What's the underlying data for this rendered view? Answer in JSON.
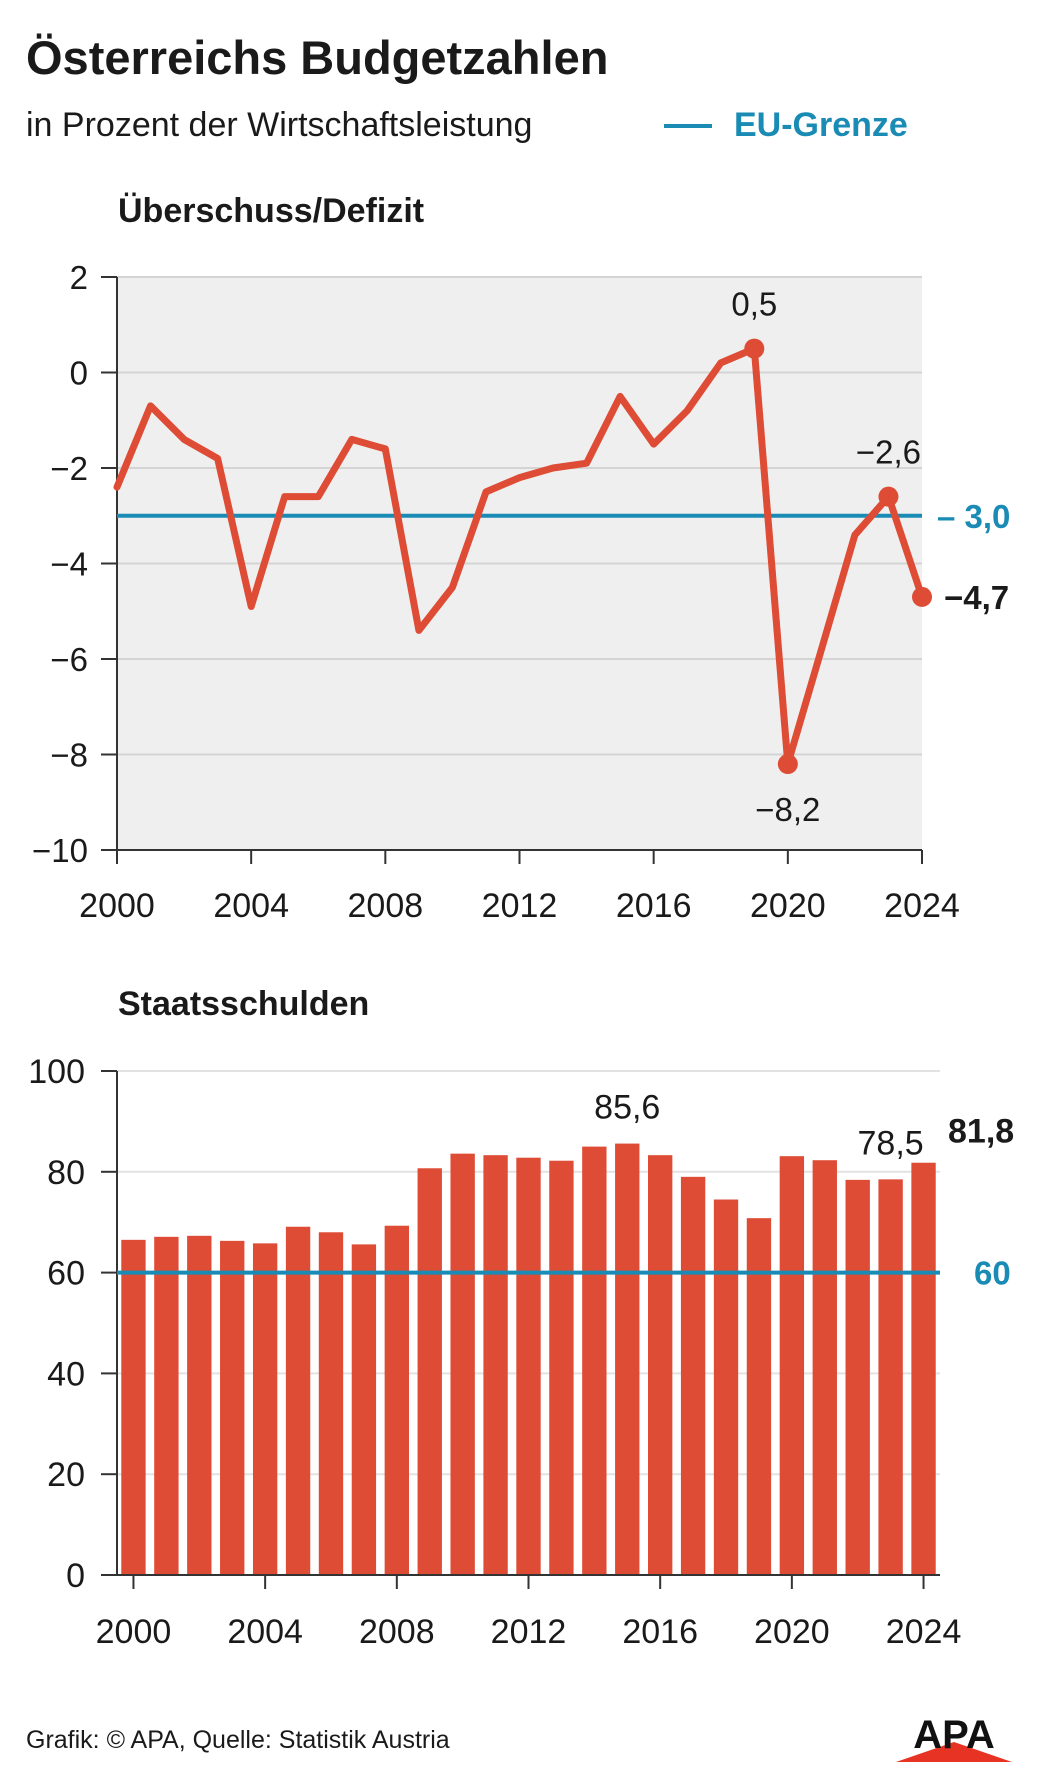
{
  "header": {
    "title": "Österreichs Budgetzahlen",
    "subtitle": "in Prozent der Wirtschaftsleistung",
    "legend_label": "EU-Grenze"
  },
  "footer": {
    "credit": "Grafik: © APA, Quelle: Statistik Austria",
    "logo_text": "APA"
  },
  "colors": {
    "series": "#de4c35",
    "eu_limit": "#1a8bb5",
    "plot_bg": "#efefef",
    "grid": "#d4d4d4",
    "axis": "#333333"
  },
  "chart_data": [
    {
      "type": "line",
      "title": "Überschuss/Defizit",
      "x": [
        2000,
        2001,
        2002,
        2003,
        2004,
        2005,
        2006,
        2007,
        2008,
        2009,
        2010,
        2011,
        2012,
        2013,
        2014,
        2015,
        2016,
        2017,
        2018,
        2019,
        2020,
        2021,
        2022,
        2023,
        2024
      ],
      "values": [
        -2.4,
        -0.7,
        -1.4,
        -1.8,
        -4.9,
        -2.6,
        -2.6,
        -1.4,
        -1.6,
        -5.4,
        -4.5,
        -2.5,
        -2.2,
        -2.0,
        -1.9,
        -0.5,
        -1.5,
        -0.8,
        0.2,
        0.5,
        -8.2,
        -5.8,
        -3.4,
        -2.6,
        -4.7
      ],
      "xlim": [
        2000,
        2024
      ],
      "ylim": [
        -10,
        2
      ],
      "yticks": [
        2,
        0,
        -2,
        -4,
        -6,
        -8,
        -10
      ],
      "ytick_labels": [
        "2",
        "0",
        "−2",
        "−4",
        "−6",
        "−8",
        "−10"
      ],
      "xticks": [
        2000,
        2004,
        2008,
        2012,
        2016,
        2020,
        2024
      ],
      "xtick_labels": [
        "2000",
        "2004",
        "2008",
        "2012",
        "2016",
        "2020",
        "2024"
      ],
      "reference_line": {
        "value": -3.0,
        "label": "– 3,0"
      },
      "annotations": [
        {
          "x": 2019,
          "y": 0.5,
          "label": "0,5",
          "bold": false,
          "position": "above"
        },
        {
          "x": 2020,
          "y": -8.2,
          "label": "−8,2",
          "bold": false,
          "position": "below"
        },
        {
          "x": 2023,
          "y": -2.6,
          "label": "−2,6",
          "bold": false,
          "position": "above"
        },
        {
          "x": 2024,
          "y": -4.7,
          "label": "−4,7",
          "bold": true,
          "position": "right"
        }
      ],
      "grid": true
    },
    {
      "type": "bar",
      "title": "Staatsschulden",
      "x": [
        2000,
        2001,
        2002,
        2003,
        2004,
        2005,
        2006,
        2007,
        2008,
        2009,
        2010,
        2011,
        2012,
        2013,
        2014,
        2015,
        2016,
        2017,
        2018,
        2019,
        2020,
        2021,
        2022,
        2023,
        2024
      ],
      "values": [
        66.5,
        67.1,
        67.3,
        66.3,
        65.8,
        69.1,
        68.0,
        65.6,
        69.3,
        80.7,
        83.6,
        83.3,
        82.8,
        82.2,
        85.0,
        85.6,
        83.3,
        79.0,
        74.5,
        70.8,
        83.1,
        82.3,
        78.4,
        78.5,
        81.8
      ],
      "ylim": [
        0,
        100
      ],
      "yticks": [
        100,
        80,
        60,
        40,
        20,
        0
      ],
      "ytick_labels": [
        "100",
        "80",
        "60",
        "40",
        "20",
        "0"
      ],
      "xticks": [
        2000,
        2004,
        2008,
        2012,
        2016,
        2020,
        2024
      ],
      "xtick_labels": [
        "2000",
        "2004",
        "2008",
        "2012",
        "2016",
        "2020",
        "2024"
      ],
      "reference_line": {
        "value": 60,
        "label": "60"
      },
      "annotations": [
        {
          "x": 2015,
          "y": 85.6,
          "label": "85,6",
          "bold": false,
          "position": "above"
        },
        {
          "x": 2023,
          "y": 78.5,
          "label": "78,5",
          "bold": false,
          "position": "above"
        },
        {
          "x": 2024,
          "y": 81.8,
          "label": "81,8",
          "bold": true,
          "position": "right"
        }
      ],
      "grid": true
    }
  ]
}
